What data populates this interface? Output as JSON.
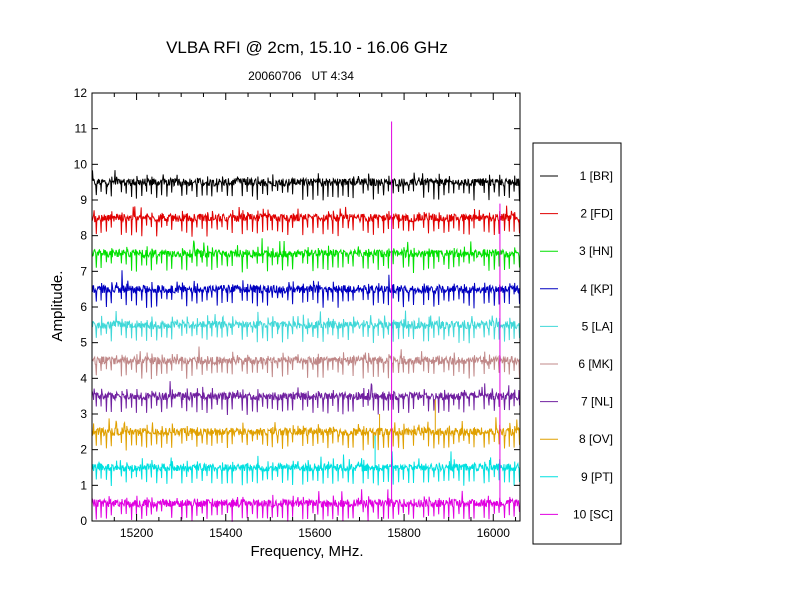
{
  "chart_data": {
    "type": "line",
    "title": "VLBA RFI @ 2cm, 15.10 - 16.06 GHz",
    "subtitle": "20060706   UT 4:34",
    "xlabel": "Frequency, MHz.",
    "ylabel": "Amplitude.",
    "xlim": [
      15100,
      16060
    ],
    "ylim": [
      0,
      12
    ],
    "x_ticks": [
      15200,
      15400,
      15600,
      15800,
      16000
    ],
    "y_ticks": [
      0,
      1,
      2,
      3,
      4,
      5,
      6,
      7,
      8,
      9,
      10,
      11,
      12
    ],
    "grid": false,
    "legend_position": "right",
    "series": [
      {
        "name": "1 [BR]",
        "baseline": 9.5,
        "color": "#000000"
      },
      {
        "name": "2 [FD]",
        "baseline": 8.5,
        "color": "#e00000"
      },
      {
        "name": "3 [HN]",
        "baseline": 7.5,
        "color": "#00e000"
      },
      {
        "name": "4 [KP]",
        "baseline": 6.5,
        "color": "#0000c0"
      },
      {
        "name": "5 [LA]",
        "baseline": 5.5,
        "color": "#40d8d8"
      },
      {
        "name": "6 [MK]",
        "baseline": 4.5,
        "color": "#c08888"
      },
      {
        "name": "7 [NL]",
        "baseline": 3.5,
        "color": "#7020a0"
      },
      {
        "name": "8 [OV]",
        "baseline": 2.5,
        "color": "#e0a000"
      },
      {
        "name": "9 [PT]",
        "baseline": 1.5,
        "color": "#00e0e0"
      },
      {
        "name": "10 [SC]",
        "baseline": 0.5,
        "color": "#e000e0"
      }
    ],
    "spikes": [
      {
        "x": 15772,
        "y_from": 0.5,
        "y_to": 11.2,
        "color": "#e000e0"
      },
      {
        "x": 16015,
        "y_from": 0.5,
        "y_to": 8.9,
        "color": "#e000e0"
      },
      {
        "x": 15735,
        "y_from": 1.5,
        "y_to": 2.4,
        "color": "#00e0e0"
      },
      {
        "x": 15745,
        "y_from": 2.5,
        "y_to": 3.0,
        "color": "#e0a000"
      },
      {
        "x": 15870,
        "y_from": 2.5,
        "y_to": 3.4,
        "color": "#e0a000"
      }
    ]
  }
}
